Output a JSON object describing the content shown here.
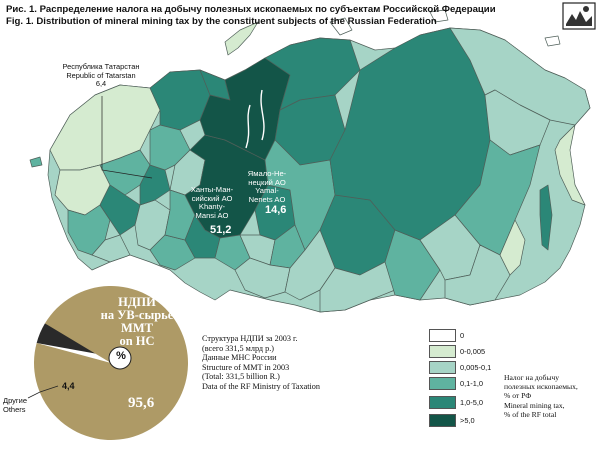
{
  "title": {
    "line_ru": "Рис. 1. Распределение налога на добычу полезных ископаемых по субъектам Российской Федерации",
    "line_en": "Fig. 1. Distribution of mineral mining tax by the constituent subjects of the Russian Federation"
  },
  "map_labels": {
    "tatarstan": "Республика Татарстан\nRepublic of Tatarstan\n6,4",
    "khanty": "Ханты-Ман-\nсийский АО\nKhanty-\nMansi AO",
    "khanty_value": "51,2",
    "yamal": "Ямало-Не-\nнецкий АО\nYamal-\nNenets AO",
    "yamal_value": "14,6"
  },
  "pie": {
    "title": "НДПИ\nна УВ-сырье\nMMT\non HC",
    "center_label": "%",
    "slices": [
      {
        "label": "Другие / Others",
        "value": 4.4,
        "display": "4,4",
        "color": "#2a2a2a"
      },
      {
        "label": "НДПИ на УВ-сырье / MMT on HC",
        "value": 95.6,
        "display": "95,6",
        "color": "#ae9a66"
      }
    ],
    "others_label": "Другие\nOthers"
  },
  "source": {
    "text": "Структура НДПИ за 2003 г.\n(всего 331,5 млрд р.)\nДанные МНС России\nStructure of MMT in 2003\n(Total: 331,5 billion R.)\nData of the RF Ministry of Taxation"
  },
  "legend": {
    "items": [
      {
        "label": "0",
        "color": "#ffffff"
      },
      {
        "label": "0-0,005",
        "color": "#d5ebd0"
      },
      {
        "label": "0,005-0,1",
        "color": "#a6d4c6"
      },
      {
        "label": "0,1-1,0",
        "color": "#5fb3a0"
      },
      {
        "label": "1,0-5,0",
        "color": "#2b8777"
      },
      {
        "label": ">5,0",
        "color": "#135548"
      }
    ],
    "caption_ru": "Налог на добычу\nполезных ископаемых,\n% от РФ",
    "caption_en": "Mineral mining tax,\n% of the RF total"
  },
  "colors": {
    "c0": "#ffffff",
    "c1": "#d5ebd0",
    "c2": "#a6d4c6",
    "c3": "#5fb3a0",
    "c4": "#2b8777",
    "c5": "#135548",
    "border": "#5a6b64"
  }
}
